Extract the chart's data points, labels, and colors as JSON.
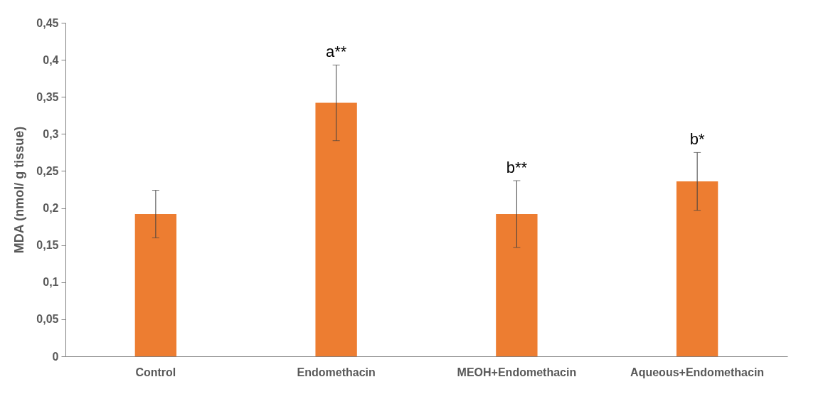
{
  "chart_data": {
    "type": "bar",
    "ylabel": "MDA (nmol/ g tissue)",
    "categories": [
      "Control",
      "Endomethacin",
      "MEOH+Endomethacin",
      "Aqueous+Endomethacin"
    ],
    "values": [
      0.192,
      0.342,
      0.192,
      0.236
    ],
    "errors": [
      0.032,
      0.051,
      0.045,
      0.039
    ],
    "color": "#ed7d31",
    "ylim": [
      0,
      0.45
    ],
    "yticks": [
      {
        "value": 0,
        "label": "0"
      },
      {
        "value": 0.05,
        "label": "0,05"
      },
      {
        "value": 0.1,
        "label": "0,1"
      },
      {
        "value": 0.15,
        "label": "0,15"
      },
      {
        "value": 0.2,
        "label": "0,2"
      },
      {
        "value": 0.25,
        "label": "0,25"
      },
      {
        "value": 0.3,
        "label": "0,3"
      },
      {
        "value": 0.35,
        "label": "0,35"
      },
      {
        "value": 0.4,
        "label": "0,4"
      },
      {
        "value": 0.45,
        "label": "0,45"
      }
    ],
    "grid": false,
    "annotations": [
      {
        "text": "a**",
        "x": "Endomethacin",
        "y": 0.393
      },
      {
        "text": "b**",
        "x": "MEOH+Endomethacin",
        "y": 0.237
      },
      {
        "text": "b*",
        "x": "Aqueous+Endomethacin",
        "y": 0.275
      }
    ]
  }
}
